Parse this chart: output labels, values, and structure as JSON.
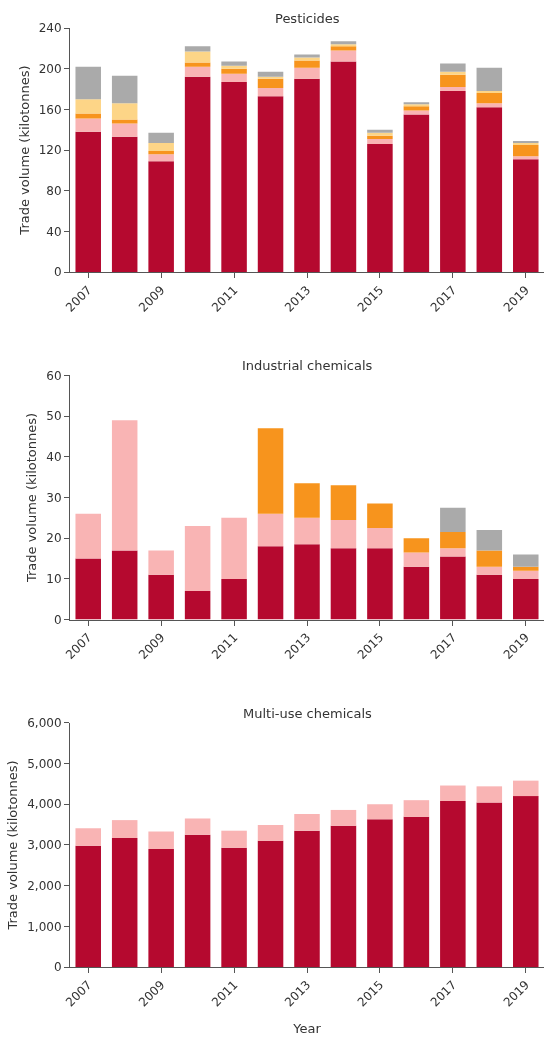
{
  "chart_data": [
    {
      "type": "bar",
      "stacked": true,
      "title": "Pesticides",
      "ylabel": "Trade volume (kilotonnes)",
      "categories": [
        "2007",
        null,
        "2009",
        null,
        "2011",
        null,
        "2013",
        null,
        "2015",
        null,
        "2017",
        null,
        "2019"
      ],
      "ylim": [
        0,
        240
      ],
      "yticks": [
        0,
        40,
        80,
        120,
        160,
        200,
        240
      ],
      "series": [
        {
          "color": "#b5092f",
          "values": [
            138,
            133,
            109,
            192,
            187,
            173,
            190,
            207,
            126,
            155,
            178,
            162,
            111
          ]
        },
        {
          "color": "#f9b4b4",
          "values": [
            13,
            13,
            7,
            10,
            8,
            8,
            11,
            11,
            5,
            4,
            4,
            4,
            3
          ]
        },
        {
          "color": "#f7941d",
          "values": [
            5,
            4,
            3,
            4,
            5,
            9,
            7,
            4,
            3,
            4,
            12,
            10,
            11
          ]
        },
        {
          "color": "#fdd587",
          "values": [
            14,
            16,
            8,
            11,
            3,
            2,
            3,
            2,
            3,
            2,
            3,
            2,
            2
          ]
        },
        {
          "color": "#aaaaaa",
          "values": [
            32,
            27,
            10,
            5,
            4,
            5,
            3,
            3,
            3,
            2,
            8,
            23,
            1
          ]
        }
      ]
    },
    {
      "type": "bar",
      "stacked": true,
      "title": "Industrial chemicals",
      "ylabel": "Trade volume (kilotonnes)",
      "categories": [
        "2007",
        null,
        "2009",
        null,
        "2011",
        null,
        "2013",
        null,
        "2015",
        null,
        "2017",
        null,
        "2019"
      ],
      "ylim": [
        0,
        60
      ],
      "yticks": [
        0,
        10,
        20,
        30,
        40,
        50,
        60
      ],
      "series": [
        {
          "color": "#b5092f",
          "values": [
            15,
            17,
            11,
            7,
            10,
            18,
            18.5,
            17.5,
            17.5,
            13,
            15.5,
            11,
            10
          ]
        },
        {
          "color": "#f9b4b4",
          "values": [
            11,
            32,
            6,
            16,
            15,
            8,
            6.5,
            7,
            5,
            3.5,
            2,
            2,
            2
          ]
        },
        {
          "color": "#f7941d",
          "values": [
            null,
            null,
            null,
            null,
            null,
            21,
            8.5,
            8.5,
            6,
            3.5,
            4,
            4,
            1
          ]
        },
        {
          "color": "#aaaaaa",
          "values": [
            null,
            null,
            null,
            null,
            null,
            null,
            null,
            null,
            null,
            null,
            6,
            5,
            3
          ]
        }
      ]
    },
    {
      "type": "bar",
      "stacked": true,
      "title": "Multi-use chemicals",
      "ylabel": "Trade volume (kilotonnes)",
      "xlabel": "Year",
      "categories": [
        "2007",
        null,
        "2009",
        null,
        "2011",
        null,
        "2013",
        null,
        "2015",
        null,
        "2017",
        null,
        "2019"
      ],
      "ylim": [
        0,
        6000
      ],
      "yticks": [
        0,
        {
          "value": 1000,
          "label": "1,000"
        },
        {
          "value": 2000,
          "label": "2,000"
        },
        {
          "value": 3000,
          "label": "3,000"
        },
        {
          "value": 4000,
          "label": "4,000"
        },
        {
          "value": 5000,
          "label": "5,000"
        },
        {
          "value": 6000,
          "label": "6,000"
        }
      ],
      "series": [
        {
          "color": "#b5092f",
          "values": [
            2980,
            3170,
            2900,
            3250,
            2930,
            3100,
            3350,
            3470,
            3630,
            3690,
            4080,
            4040,
            4200
          ]
        },
        {
          "color": "#f9b4b4",
          "values": [
            430,
            440,
            430,
            400,
            420,
            390,
            410,
            390,
            370,
            410,
            380,
            400,
            380
          ]
        }
      ]
    }
  ]
}
